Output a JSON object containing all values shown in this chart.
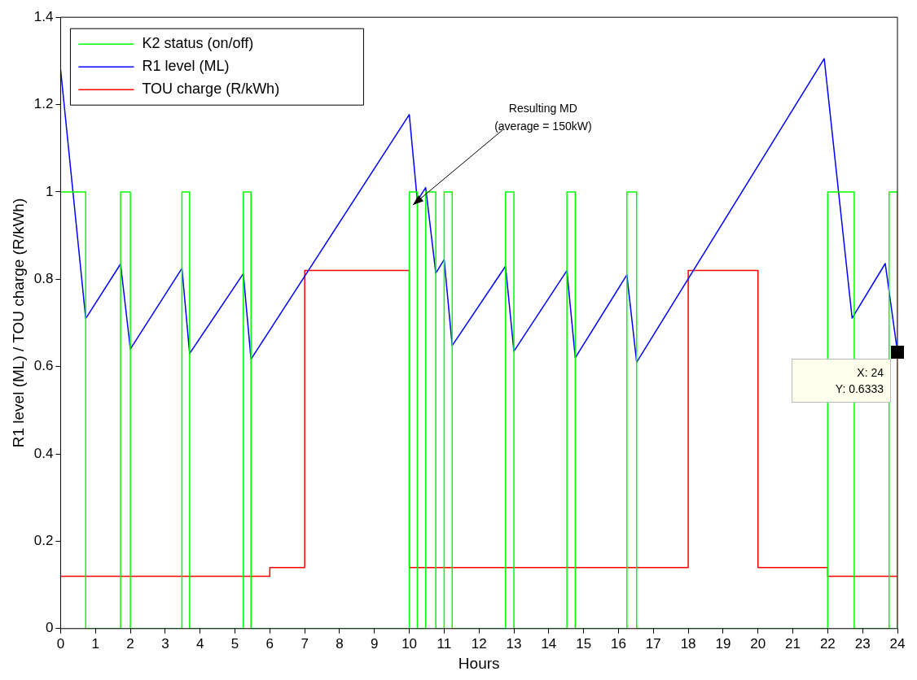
{
  "chart_data": {
    "type": "line",
    "xlabel": "Hours",
    "ylabel": "R1 level (ML) / TOU charge (R/kWh)",
    "xlim": [
      0,
      24
    ],
    "xticks": [
      0,
      1,
      2,
      3,
      4,
      5,
      6,
      7,
      8,
      9,
      10,
      11,
      12,
      13,
      14,
      15,
      16,
      17,
      18,
      19,
      20,
      21,
      22,
      23,
      24
    ],
    "ylim": [
      0,
      1.4
    ],
    "yticks": [
      0,
      0.2,
      0.4,
      0.6,
      0.8,
      1,
      1.2,
      1.4
    ],
    "grid": false,
    "legend": "top left",
    "series": [
      {
        "name": "K2 status (on/off)",
        "type": "step",
        "color": "#00ff00",
        "x": [
          0,
          0.72,
          1.72,
          2.0,
          3.48,
          3.7,
          5.24,
          5.46,
          10,
          10.23,
          10.47,
          10.76,
          11,
          11.23,
          12.76,
          13,
          14.52,
          14.76,
          16.24,
          16.52,
          22,
          22.76,
          23.76,
          24
        ],
        "values": [
          1,
          0,
          1,
          0,
          1,
          0,
          1,
          0,
          1,
          0,
          1,
          0,
          1,
          0,
          1,
          0,
          1,
          0,
          1,
          0,
          1,
          0,
          1,
          0
        ]
      },
      {
        "name": "R1 level (ML)",
        "type": "line",
        "color": "#0000ff",
        "x": [
          0,
          0.72,
          1.72,
          2.0,
          3.48,
          3.7,
          5.24,
          5.46,
          10,
          10.23,
          10.47,
          10.76,
          11,
          11.23,
          12.76,
          13,
          14.52,
          14.76,
          16.24,
          16.52,
          21.9,
          22.7,
          23.65,
          24
        ],
        "values": [
          1.28,
          0.71,
          0.835,
          0.64,
          0.825,
          0.63,
          0.813,
          0.617,
          1.177,
          0.98,
          1.01,
          0.814,
          0.845,
          0.648,
          0.83,
          0.635,
          0.82,
          0.62,
          0.81,
          0.61,
          1.305,
          0.711,
          0.836,
          0.6333
        ]
      },
      {
        "name": "TOU charge (R/kWh)",
        "type": "step",
        "color": "#ff0000",
        "x": [
          0,
          6,
          7,
          10,
          18,
          20,
          22,
          24
        ],
        "values": [
          0.12,
          0.14,
          0.82,
          0.14,
          0.82,
          0.14,
          0.12,
          0.12
        ]
      }
    ],
    "annotations": [
      {
        "text": "Resulting MD\n(average = 150kW)",
        "x": 10.1,
        "y": 0.97
      },
      {
        "text": "X: 24\nY: 0.6333",
        "x": 24,
        "y": 0.6333
      }
    ]
  }
}
